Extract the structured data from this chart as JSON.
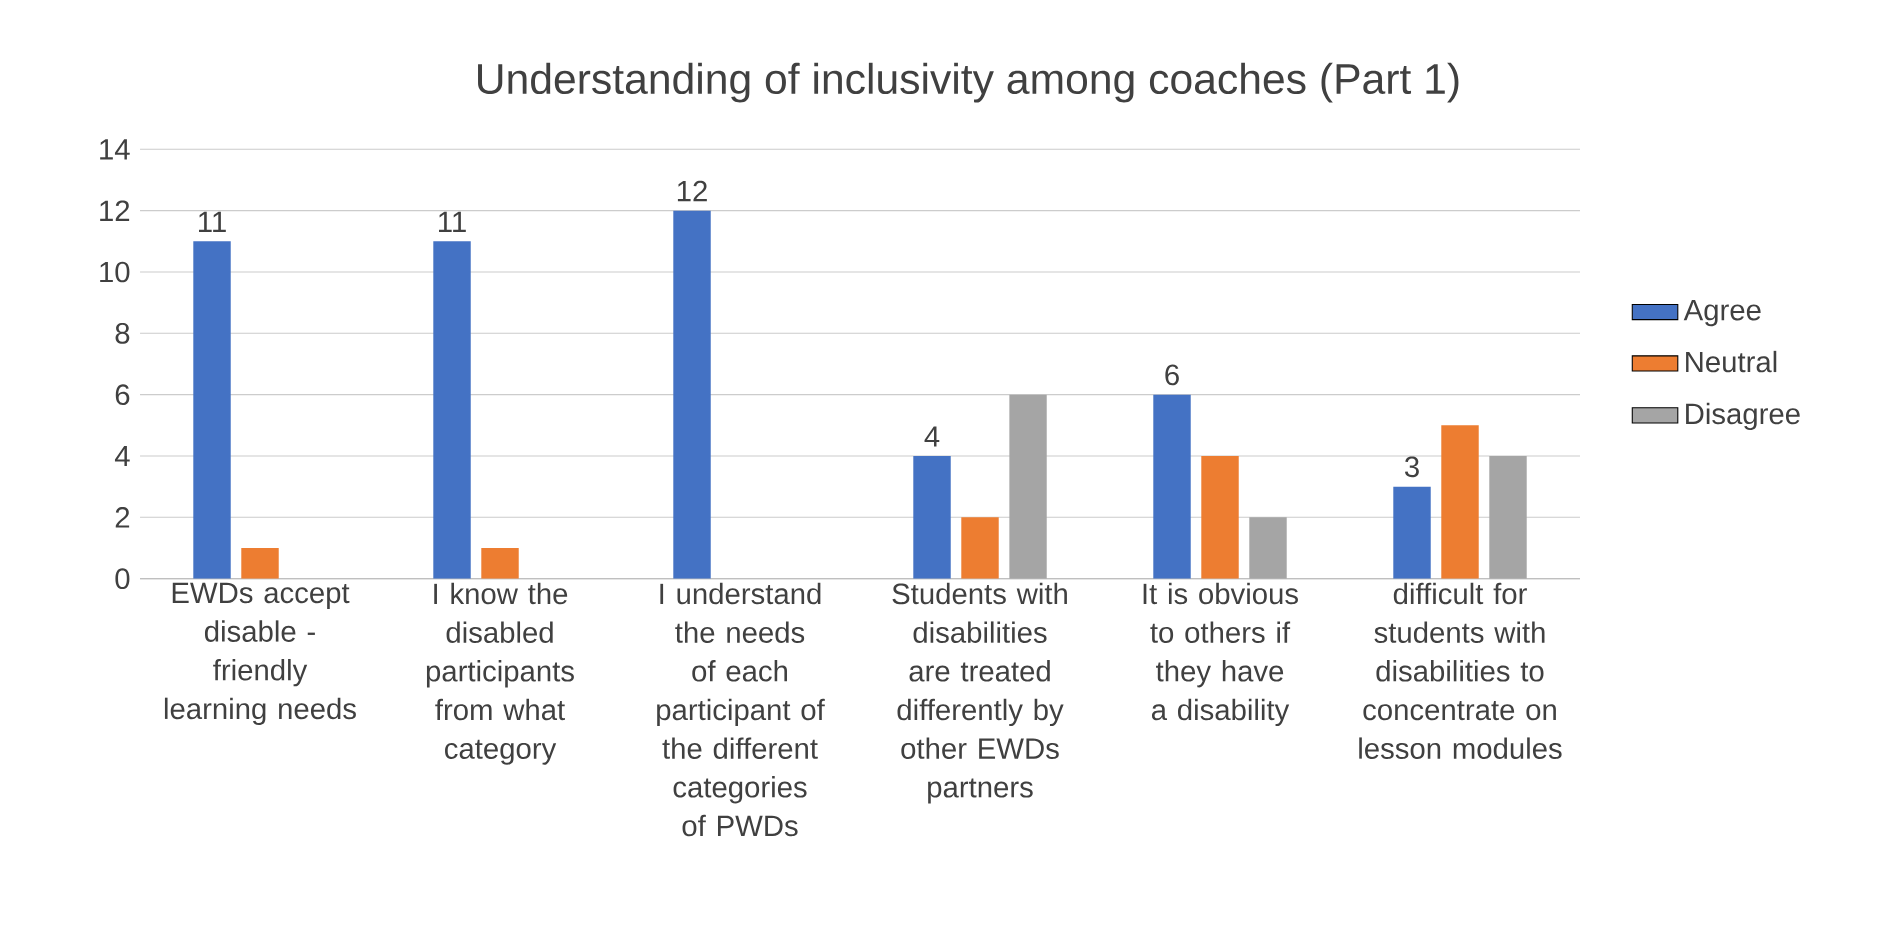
{
  "chart_data": {
    "type": "bar",
    "title": "Understanding of inclusivity among coaches (Part 1)",
    "categories": [
      "EWDs accept disable - friendly learning needs",
      "I know the disabled participants from what category",
      "I understand the needs of each participant of the different categories of PWDs",
      "Students with disabilities are treated differently by other EWDs partners",
      "It is obvious to others if they have a disability",
      "difficult for students with disabilities to concentrate on lesson modules"
    ],
    "series": [
      {
        "name": "Agree",
        "color": "#4472c4",
        "values": [
          11,
          11,
          12,
          4,
          6,
          3
        ],
        "value_labels": [
          "11",
          "11",
          "12",
          "4",
          "6",
          "3"
        ]
      },
      {
        "name": "Neutral",
        "color": "#ed7d31",
        "values": [
          1,
          1,
          null,
          2,
          4,
          5
        ]
      },
      {
        "name": "Disagree",
        "color": "#a5a5a5",
        "values": [
          null,
          null,
          null,
          6,
          2,
          4
        ]
      }
    ],
    "ylim": [
      0,
      14
    ],
    "yticks": [
      0,
      2,
      4,
      6,
      8,
      10,
      12,
      14
    ],
    "grid": "y",
    "legend": "right"
  }
}
